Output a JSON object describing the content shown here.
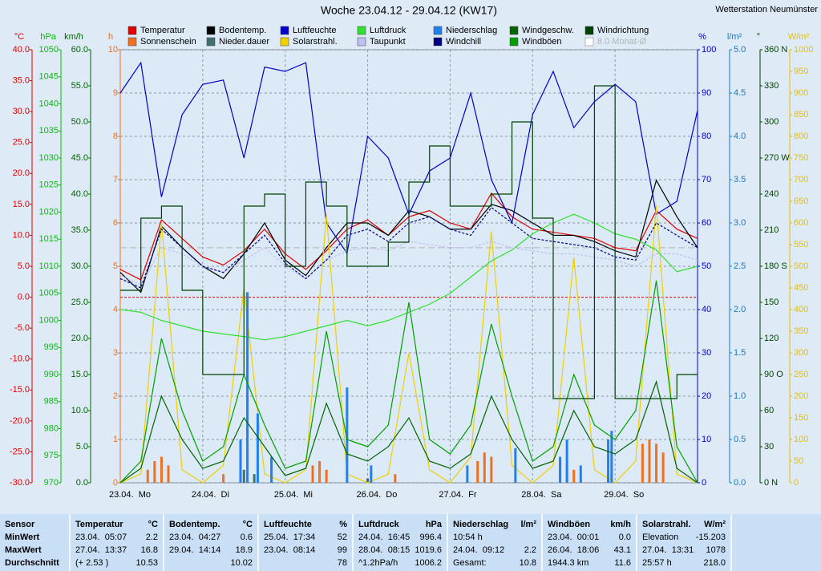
{
  "chart_data": {
    "type": "line",
    "title": "Woche 23.04.12 - 29.04.12 (KW17)",
    "station": "Wetterstation Neumünster",
    "grid": true,
    "grid_axis": 3,
    "xlim": [
      0,
      168
    ],
    "xticks": [
      {
        "value": 0,
        "label": "23.04.  Mo"
      },
      {
        "value": 24,
        "label": "24.04.  Di"
      },
      {
        "value": 48,
        "label": "25.04.  Mi"
      },
      {
        "value": 72,
        "label": "26.04.  Do"
      },
      {
        "value": 96,
        "label": "27.04.  Fr"
      },
      {
        "value": 120,
        "label": "28.04.  Sa"
      },
      {
        "value": 144,
        "label": "29.04.  So"
      }
    ],
    "x": [
      0,
      6,
      12,
      18,
      24,
      30,
      36,
      42,
      48,
      54,
      60,
      66,
      72,
      78,
      84,
      90,
      96,
      102,
      108,
      114,
      120,
      126,
      132,
      138,
      144,
      150,
      156,
      162,
      168
    ],
    "axes": [
      {
        "label": "°C",
        "color": "#e00000",
        "lim": [
          -30,
          40
        ],
        "ticks": [
          {
            "value": 40,
            "label": "40.0"
          },
          {
            "value": 35,
            "label": "35.0"
          },
          {
            "value": 30,
            "label": "30.0"
          },
          {
            "value": 25,
            "label": "25.0"
          },
          {
            "value": 20,
            "label": "20.0"
          },
          {
            "value": 15,
            "label": "15.0"
          },
          {
            "value": 10,
            "label": "10.0"
          },
          {
            "value": 5,
            "label": "5.0"
          },
          {
            "value": 0,
            "label": "0.0"
          },
          {
            "value": -5,
            "label": "-5.0"
          },
          {
            "value": -10,
            "label": "-10.0"
          },
          {
            "value": -15,
            "label": "-15.0"
          },
          {
            "value": -20,
            "label": "-20.0"
          },
          {
            "value": -25,
            "label": "-25.0"
          },
          {
            "value": -30,
            "label": "-30.0"
          }
        ]
      },
      {
        "label": "hPa",
        "color": "#00c000",
        "lim": [
          970,
          1050
        ],
        "ticks": [
          1050,
          1045,
          1040,
          1035,
          1030,
          1025,
          1020,
          1015,
          1010,
          1005,
          1000,
          995,
          990,
          985,
          980,
          975,
          970
        ]
      },
      {
        "label": "km/h",
        "color": "#006400",
        "lim": [
          0,
          60
        ],
        "ticks": [
          {
            "value": 60,
            "label": "60.0"
          },
          {
            "value": 55,
            "label": "55.0"
          },
          {
            "value": 50,
            "label": "50.0"
          },
          {
            "value": 45,
            "label": "45.0"
          },
          {
            "value": 40,
            "label": "40.0"
          },
          {
            "value": 35,
            "label": "35.0"
          },
          {
            "value": 30,
            "label": "30.0"
          },
          {
            "value": 25,
            "label": "25.0"
          },
          {
            "value": 20,
            "label": "20.0"
          },
          {
            "value": 15,
            "label": "15.0"
          },
          {
            "value": 10,
            "label": "10.0"
          },
          {
            "value": 5,
            "label": "5.0"
          },
          {
            "value": 0,
            "label": "0.0"
          }
        ]
      },
      {
        "label": "h",
        "color": "#f07020",
        "lim": [
          0,
          10
        ],
        "ticks": [
          10,
          9,
          8,
          7,
          6,
          5,
          4,
          3,
          2,
          1,
          0
        ]
      },
      {
        "label": "%",
        "color": "#0000c8",
        "lim": [
          0,
          100
        ],
        "ticks": [
          100,
          90,
          80,
          70,
          60,
          50,
          40,
          30,
          20,
          10,
          0
        ]
      },
      {
        "label": "l/m²",
        "color": "#1878c0",
        "lim": [
          0,
          5
        ],
        "ticks": [
          {
            "value": 5,
            "label": "5.0"
          },
          4.5,
          {
            "value": 4,
            "label": "4.0"
          },
          3.5,
          {
            "value": 3,
            "label": "3.0"
          },
          2.5,
          {
            "value": 2,
            "label": "2.0"
          },
          1.5,
          {
            "value": 1,
            "label": "1.0"
          },
          0.5,
          {
            "value": 0,
            "label": "0.0"
          }
        ]
      },
      {
        "label": "°",
        "color": "#003c00",
        "lim": [
          0,
          360
        ],
        "ticks": [
          {
            "value": 360,
            "label": "360 N"
          },
          330,
          300,
          {
            "value": 270,
            "label": "270 W"
          },
          240,
          210,
          {
            "value": 180,
            "label": "180 S"
          },
          150,
          120,
          {
            "value": 90,
            "label": "90 O"
          },
          60,
          30,
          {
            "value": 0,
            "label": "0 N"
          }
        ]
      },
      {
        "label": "W/m²",
        "color": "#e8c000",
        "lim": [
          0,
          1000
        ],
        "ticks": [
          1000,
          950,
          900,
          850,
          800,
          750,
          700,
          650,
          600,
          550,
          500,
          450,
          400,
          350,
          300,
          250,
          200,
          150,
          100,
          50,
          0
        ]
      }
    ],
    "zero_line": {
      "axis": 0,
      "value": 0,
      "color": "#e00000"
    },
    "monthly_avg": {
      "label": "8.0 Monat-Ø",
      "axis": 0,
      "value": 8,
      "color": "#b4b4b4"
    },
    "series": [
      {
        "name": "Temperatur",
        "color": "#e00000",
        "axis": 0,
        "values": [
          4.5,
          2.8,
          12.5,
          9.5,
          6.5,
          5.2,
          7.5,
          11,
          7,
          4.5,
          7.5,
          11,
          12.5,
          10,
          13,
          14,
          12,
          11,
          16.8,
          13,
          11,
          10.5,
          10,
          9.5,
          8,
          7.5,
          14,
          11,
          9.5
        ]
      },
      {
        "name": "Sonnenschein",
        "color": "#f07020",
        "axis": 3,
        "kind": "bar",
        "x": [
          8,
          10,
          12,
          14,
          30,
          56,
          58,
          60,
          80,
          104,
          106,
          108,
          128,
          130,
          132,
          152,
          154,
          156,
          158
        ],
        "values": [
          0.3,
          0.5,
          0.6,
          0.4,
          0.2,
          0.4,
          0.5,
          0.3,
          0.2,
          0.5,
          0.7,
          0.6,
          0.5,
          0.4,
          0.3,
          0.9,
          1.0,
          0.9,
          0.7
        ]
      },
      {
        "name": "Bodentemp.",
        "color": "#000000",
        "axis": 0,
        "values": [
          4,
          0.8,
          11.5,
          8,
          5,
          3,
          7,
          12,
          6,
          3.5,
          8,
          12,
          12,
          10,
          14,
          13,
          11,
          11,
          15,
          14,
          12,
          10,
          10,
          9,
          7.5,
          6.5,
          18.9,
          13,
          8
        ]
      },
      {
        "name": "Nieder.dauer",
        "color": "#407070",
        "axis": 3,
        "kind": "bar",
        "x": [
          36,
          39,
          72,
          142
        ],
        "values": [
          0.3,
          0.2,
          0.1,
          0.2
        ]
      },
      {
        "name": "Luftfeuchte",
        "color": "#0000c8",
        "axis": 4,
        "values": [
          90,
          97,
          66,
          85,
          92,
          93,
          75,
          96,
          95,
          97,
          60,
          53,
          80,
          75,
          62,
          72,
          75,
          90,
          70,
          60,
          85,
          95,
          82,
          88,
          92,
          88,
          62,
          65,
          86
        ]
      },
      {
        "name": "Solarstrahl.",
        "color": "#f0d000",
        "axis": 7,
        "values": [
          0,
          20,
          600,
          30,
          0,
          40,
          450,
          20,
          0,
          30,
          620,
          20,
          0,
          20,
          300,
          30,
          0,
          60,
          580,
          40,
          0,
          40,
          520,
          30,
          0,
          50,
          640,
          20,
          0
        ]
      },
      {
        "name": "Luftdruck",
        "color": "#30e030",
        "axis": 1,
        "values": [
          1002,
          1001.5,
          1000,
          999,
          998,
          997.5,
          997,
          996.4,
          997,
          998,
          999,
          1000,
          999,
          1000,
          1001.5,
          1003,
          1005,
          1008,
          1011,
          1013,
          1016,
          1018,
          1019.6,
          1018,
          1016,
          1015,
          1013,
          1009,
          1010
        ]
      },
      {
        "name": "Taupunkt",
        "color": "#c0c0f0",
        "axis": 0,
        "dash": true,
        "values": [
          3.5,
          2,
          8,
          7,
          5,
          4,
          6,
          8,
          5,
          3,
          6,
          7.5,
          8,
          7.5,
          9,
          8.5,
          8,
          8,
          9,
          8,
          7.5,
          7,
          7,
          6.5,
          6,
          5,
          7,
          7,
          6
        ]
      },
      {
        "name": "Niederschlag",
        "color": "#1f80f0",
        "axis": 5,
        "kind": "bar",
        "x": [
          35,
          37,
          40,
          44,
          66,
          73,
          101,
          115,
          128,
          130,
          134,
          142,
          143
        ],
        "values": [
          0.5,
          2.2,
          0.8,
          0.3,
          1.1,
          0.2,
          0.2,
          0.4,
          0.3,
          0.5,
          0.2,
          0.5,
          0.6
        ]
      },
      {
        "name": "Windchill",
        "color": "#000080",
        "axis": 0,
        "dash": true,
        "values": [
          3,
          1.5,
          11,
          8,
          5,
          4,
          7,
          10,
          5.5,
          3,
          6,
          10,
          11,
          9,
          12,
          13,
          11,
          10,
          14.5,
          12,
          9.5,
          9,
          8.5,
          8,
          6.5,
          6,
          12,
          10,
          8
        ]
      },
      {
        "name": "Windgeschw.",
        "color": "#006400",
        "axis": 2,
        "values": [
          0,
          2,
          12,
          6,
          2,
          3,
          9,
          5,
          1,
          2,
          11,
          4,
          3,
          5,
          9,
          3,
          2,
          4,
          12,
          6,
          2,
          3,
          10,
          5,
          4,
          6,
          14,
          2,
          0
        ]
      },
      {
        "name": "Windböen",
        "color": "#00a000",
        "axis": 2,
        "values": [
          0,
          3,
          20,
          10,
          3,
          5,
          15,
          8,
          2,
          3,
          21,
          6,
          5,
          8,
          25,
          6,
          4,
          8,
          22,
          12,
          3,
          5,
          15,
          8,
          6,
          10,
          28,
          5,
          0
        ]
      },
      {
        "name": "Windrichtung",
        "color": "#004000",
        "axis": 6,
        "step": true,
        "values": [
          160,
          220,
          230,
          160,
          90,
          90,
          230,
          240,
          180,
          250,
          230,
          180,
          180,
          200,
          250,
          280,
          230,
          230,
          240,
          300,
          220,
          70,
          70,
          330,
          70,
          70,
          70,
          90,
          90
        ]
      }
    ]
  },
  "table": {
    "title": "Sensor",
    "row_labels": [
      "MinWert",
      "MaxWert",
      "Durchschnitt"
    ],
    "columns": [
      {
        "title": "Temperatur",
        "unit": "°C",
        "rows": [
          {
            "left": "23.04.  05:07",
            "right": "2.2"
          },
          {
            "left": "27.04.  13:37",
            "right": "16.8"
          },
          {
            "left": "(+ 2.53 )",
            "right": "10.53"
          }
        ]
      },
      {
        "title": "Bodentemp.",
        "unit": "°C",
        "rows": [
          {
            "left": "23.04.  04:27",
            "right": "0.6"
          },
          {
            "left": "29.04.  14:14",
            "right": "18.9"
          },
          {
            "right": "10.02"
          }
        ]
      },
      {
        "title": "Luftfeuchte",
        "unit": "%",
        "rows": [
          {
            "left": "25.04.  17:34",
            "right": "52"
          },
          {
            "left": "23.04.  08:14",
            "right": "99"
          },
          {
            "right": "78"
          }
        ]
      },
      {
        "title": "Luftdruck",
        "unit": "hPa",
        "rows": [
          {
            "left": "24.04.  16:45",
            "right": "996.4"
          },
          {
            "left": "28.04.  08:15",
            "right": "1019.6"
          },
          {
            "left": "^1.2hPa/h",
            "right": "1006.2"
          }
        ]
      },
      {
        "title": "Niederschlag",
        "unit": "l/m²",
        "rows": [
          {
            "left": "10:54 h"
          },
          {
            "left": "24.04.  09:12",
            "right": "2.2"
          },
          {
            "left": "Gesamt:",
            "right": "10.8"
          }
        ]
      },
      {
        "title": "Windböen",
        "unit": "km/h",
        "rows": [
          {
            "left": "23.04.  00:01",
            "right": "0.0"
          },
          {
            "left": "26.04.  18:06",
            "right": "43.1"
          },
          {
            "left": "1944.3 km",
            "right": "11.6"
          }
        ]
      },
      {
        "title": "Solarstrahl.",
        "unit": "W/m²",
        "rows": [
          {
            "left": "Elevation",
            "right": "-15.203"
          },
          {
            "left": "27.04.  13:31",
            "right": "1078"
          },
          {
            "left": "25:57 h",
            "right": "218.0"
          }
        ]
      }
    ]
  }
}
